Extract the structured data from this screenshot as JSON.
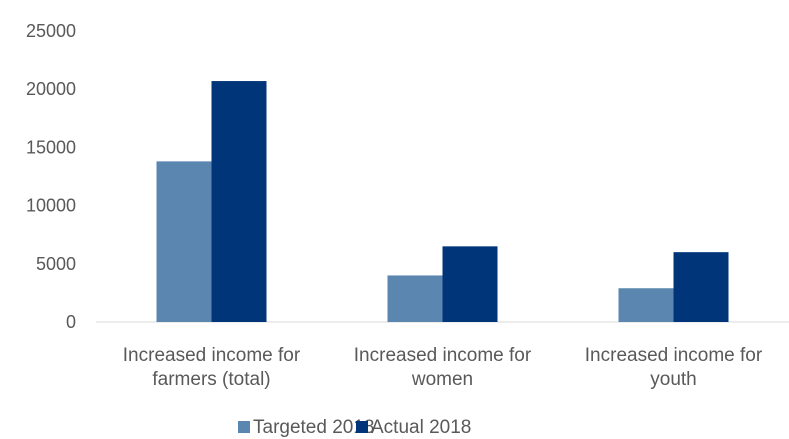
{
  "chart_data": {
    "type": "bar",
    "title": "",
    "xlabel": "",
    "ylabel": "",
    "categories": [
      [
        "Increased income for",
        "farmers (total)"
      ],
      [
        "Increased income for",
        "women"
      ],
      [
        "Increased income for",
        "youth"
      ]
    ],
    "series": [
      {
        "name": "Targeted 2018",
        "color": "#5b86b0",
        "values": [
          13800,
          4000,
          2900
        ]
      },
      {
        "name": "Actual 2018",
        "color": "#00357a",
        "values": [
          20700,
          6500,
          6000
        ]
      }
    ],
    "ylim": [
      0,
      25000
    ],
    "yticks": [
      0,
      5000,
      10000,
      15000,
      20000,
      25000
    ],
    "grid": false,
    "legend_position": "bottom"
  }
}
